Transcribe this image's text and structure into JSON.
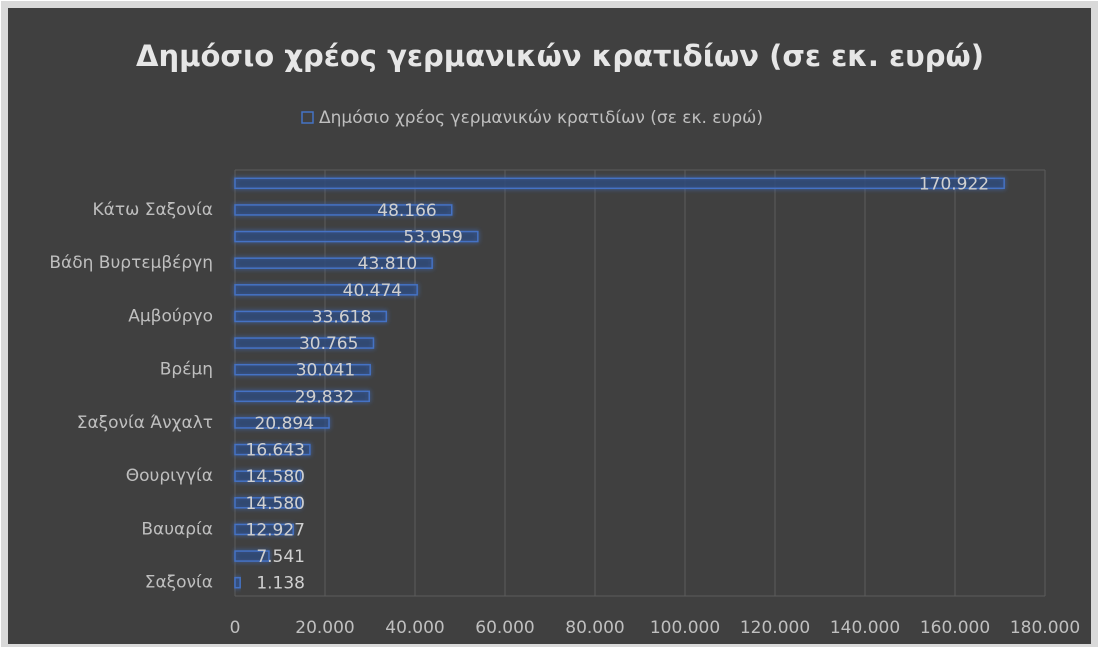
{
  "chart_data": {
    "type": "bar",
    "orientation": "horizontal",
    "title": "Δημόσιο χρέος γερμανικών κρατιδίων (σε εκ. ευρώ)",
    "categories": [
      null,
      "Κάτω Σαξονία",
      null,
      "Βάδη Βυρτεμβέργη",
      null,
      "Αμβούργο",
      null,
      "Βρέμη",
      null,
      "Σαξονία Άνχαλτ",
      null,
      "Θουριγγία",
      null,
      "Βαυαρία",
      null,
      "Σαξονία"
    ],
    "series": [
      {
        "name": "Δημόσιο χρέος γερμανικών κρατιδίων (σε εκ. ευρώ)",
        "color": "#4472c4",
        "values": [
          170922,
          48166,
          53959,
          43810,
          40474,
          33618,
          30765,
          30041,
          29832,
          20894,
          16643,
          14580,
          14580,
          12927,
          7541,
          1138
        ],
        "value_labels": [
          "170.922",
          "48.166",
          "53.959",
          "43.810",
          "40.474",
          "33.618",
          "30.765",
          "30.041",
          "29.832",
          "20.894",
          "16.643",
          "14.580",
          "14.580",
          "12.927",
          "7.541",
          "1.138"
        ]
      }
    ],
    "xlim": [
      0,
      180000
    ],
    "xticks": [
      0,
      {
        "value": 20000,
        "label": "20.000"
      },
      {
        "value": 40000,
        "label": "40.000"
      },
      {
        "value": 60000,
        "label": "60.000"
      },
      {
        "value": 80000,
        "label": "80.000"
      },
      {
        "value": 100000,
        "label": "100.000"
      },
      {
        "value": 120000,
        "label": "120.000"
      },
      {
        "value": 140000,
        "label": "140.000"
      },
      {
        "value": 160000,
        "label": "160.000"
      },
      {
        "value": 180000,
        "label": "180.000"
      }
    ],
    "grid": true,
    "legend": "top"
  }
}
